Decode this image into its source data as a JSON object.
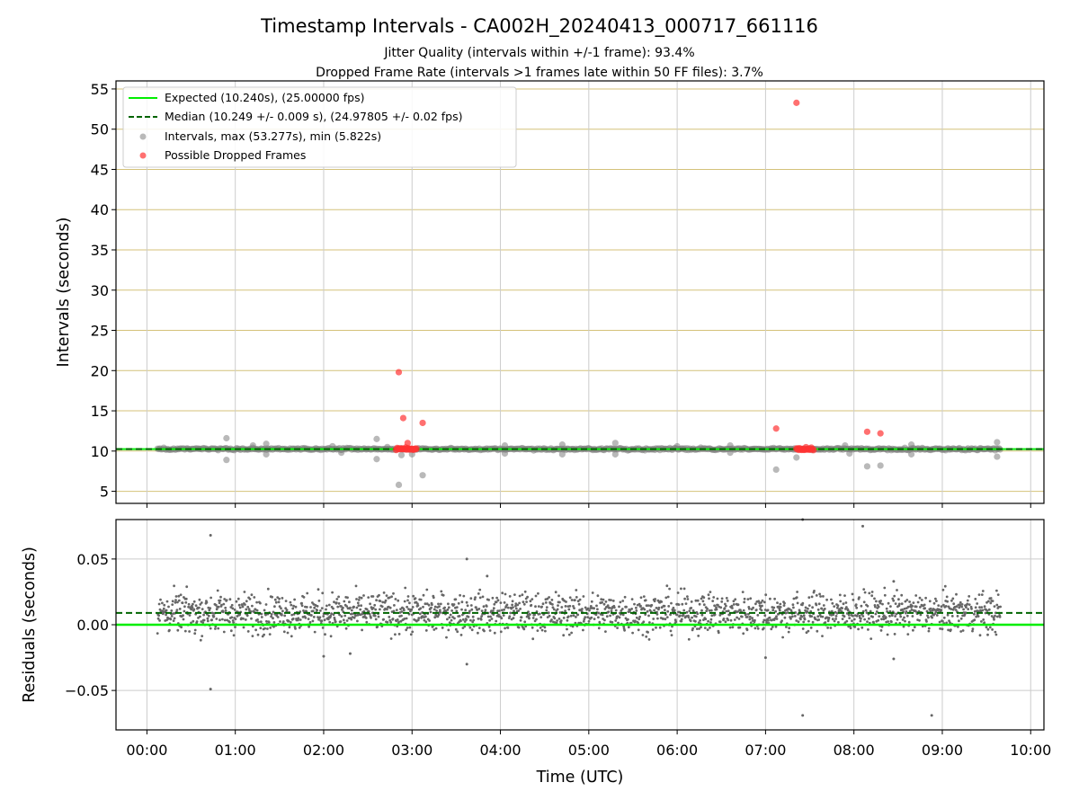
{
  "chart_data": {
    "title": "Timestamp Intervals - CA002H_20240413_000717_661116",
    "subtitle_1": "Jitter Quality (intervals within +/-1 frame): 93.4%",
    "subtitle_2": "Dropped Frame Rate (intervals >1 frames late within 50 FF files): 3.7%",
    "xlabel": "Time (UTC)",
    "colors": {
      "expected": "#00ee00",
      "median": "#006400",
      "intervals": "#808080",
      "dropped": "#ff3333",
      "hgrid": "#d4c27a",
      "grid": "#cccccc"
    },
    "x_ticks": [
      "00:00",
      "01:00",
      "02:00",
      "03:00",
      "04:00",
      "05:00",
      "06:00",
      "07:00",
      "08:00",
      "09:00",
      "10:00"
    ],
    "xlim_hours": [
      -0.35,
      10.15
    ],
    "top_panel": {
      "type": "scatter",
      "ylabel": "Intervals (seconds)",
      "ylim": [
        3.5,
        56
      ],
      "y_ticks": [
        "5",
        "10",
        "15",
        "20",
        "25",
        "30",
        "35",
        "40",
        "45",
        "50",
        "55"
      ],
      "expected_interval": 10.24,
      "median_interval": 10.249,
      "legend": {
        "position": "top-left",
        "expected": "Expected (10.240s), (25.00000 fps)",
        "median": "Median (10.249 +/- 0.009 s), (24.97805 +/- 0.02 fps)",
        "intervals": "Intervals, max (53.277s), min (5.822s)",
        "dropped": "Possible Dropped Frames"
      },
      "interval_outliers": [
        [
          0.9,
          11.6
        ],
        [
          0.9,
          8.9
        ],
        [
          1.2,
          10.7
        ],
        [
          1.35,
          10.9
        ],
        [
          1.35,
          9.6
        ],
        [
          2.1,
          10.6
        ],
        [
          2.2,
          9.8
        ],
        [
          2.6,
          11.5
        ],
        [
          2.6,
          9.0
        ],
        [
          2.72,
          10.5
        ],
        [
          2.85,
          5.8
        ],
        [
          2.88,
          9.5
        ],
        [
          3.0,
          9.6
        ],
        [
          3.12,
          7.0
        ],
        [
          4.05,
          10.7
        ],
        [
          4.05,
          9.7
        ],
        [
          4.7,
          10.8
        ],
        [
          4.7,
          9.6
        ],
        [
          5.3,
          11.0
        ],
        [
          5.3,
          9.6
        ],
        [
          6.0,
          10.6
        ],
        [
          6.6,
          10.7
        ],
        [
          6.6,
          9.8
        ],
        [
          7.12,
          7.7
        ],
        [
          7.35,
          9.2
        ],
        [
          7.9,
          10.7
        ],
        [
          7.95,
          9.7
        ],
        [
          8.15,
          8.1
        ],
        [
          8.3,
          8.2
        ],
        [
          8.65,
          10.8
        ],
        [
          8.65,
          9.6
        ],
        [
          9.62,
          11.1
        ],
        [
          9.62,
          9.3
        ]
      ],
      "dropped_frames": [
        [
          2.85,
          19.8
        ],
        [
          2.9,
          14.1
        ],
        [
          3.12,
          13.5
        ],
        [
          2.95,
          11.0
        ],
        [
          7.12,
          12.8
        ],
        [
          7.35,
          53.277
        ],
        [
          8.15,
          12.4
        ],
        [
          8.3,
          12.2
        ]
      ],
      "dropped_clusters": [
        [
          2.82,
          3.05,
          10.28
        ],
        [
          7.35,
          7.55,
          10.28
        ]
      ]
    },
    "bottom_panel": {
      "type": "scatter",
      "ylabel": "Residuals (seconds)",
      "ylim": [
        -0.08,
        0.08
      ],
      "y_ticks": [
        "−0.05",
        "0.00",
        "0.05"
      ],
      "expected_residual": 0.0,
      "median_residual": 0.009,
      "outliers": [
        [
          0.72,
          0.068
        ],
        [
          0.72,
          -0.049
        ],
        [
          3.62,
          0.05
        ],
        [
          3.62,
          -0.03
        ],
        [
          3.85,
          0.037
        ],
        [
          7.42,
          0.08
        ],
        [
          7.42,
          -0.069
        ],
        [
          8.1,
          0.075
        ],
        [
          8.88,
          -0.069
        ],
        [
          8.45,
          0.033
        ],
        [
          8.45,
          -0.026
        ],
        [
          2.0,
          -0.024
        ],
        [
          2.3,
          -0.022
        ],
        [
          7.0,
          -0.025
        ]
      ]
    }
  }
}
